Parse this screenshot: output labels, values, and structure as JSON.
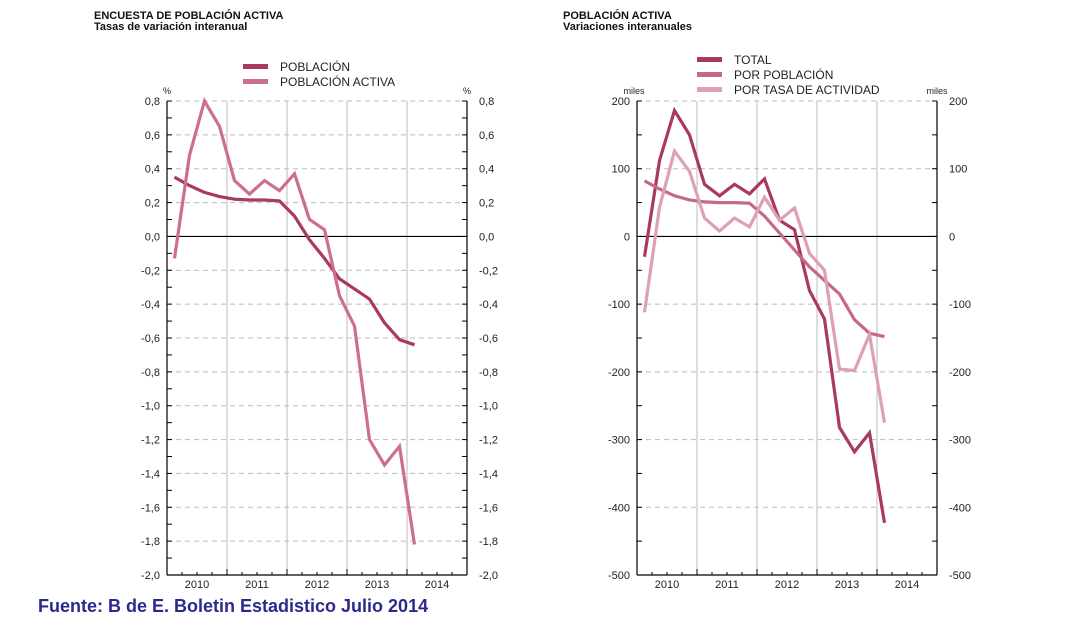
{
  "source_note": "Fuente: B de E. Boletin Estadistico Julio 2014",
  "chart_data": [
    {
      "type": "line",
      "title": "ENCUESTA DE POBLACIÓN ACTIVA",
      "subtitle": "Tasas de variación interanual",
      "ylabel_left": "%",
      "ylabel_right": "%",
      "ylim": [
        -2.0,
        0.8
      ],
      "yticks": [
        0.8,
        0.6,
        0.4,
        0.2,
        0.0,
        -0.2,
        -0.4,
        -0.6,
        -0.8,
        -1.0,
        -1.2,
        -1.4,
        -1.6,
        -1.8,
        -2.0
      ],
      "ytick_labels": [
        "0,8",
        "0,6",
        "0,4",
        "0,2",
        "0,0",
        "-0,2",
        "-0,4",
        "-0,6",
        "-0,8",
        "-1,0",
        "-1,2",
        "-1,4",
        "-1,6",
        "-1,8",
        "-2,0"
      ],
      "x_categories": [
        "2010",
        "2011",
        "2012",
        "2013",
        "2014"
      ],
      "x_periods": [
        "2010 Q1",
        "2010 Q2",
        "2010 Q3",
        "2010 Q4",
        "2011 Q1",
        "2011 Q2",
        "2011 Q3",
        "2011 Q4",
        "2012 Q1",
        "2012 Q2",
        "2012 Q3",
        "2012 Q4",
        "2013 Q1",
        "2013 Q2",
        "2013 Q3",
        "2013 Q4",
        "2014 Q1"
      ],
      "grid": true,
      "legend": "top-center",
      "series": [
        {
          "name": "POBLACIÓN",
          "color": "#a8395f",
          "values": [
            0.35,
            0.3,
            0.26,
            0.235,
            0.22,
            0.215,
            0.215,
            0.21,
            0.12,
            -0.02,
            -0.13,
            -0.25,
            -0.31,
            -0.37,
            -0.51,
            -0.61,
            -0.64
          ]
        },
        {
          "name": "POBLACIÓN ACTIVA",
          "color": "#cc6f8d",
          "values": [
            -0.13,
            0.48,
            0.8,
            0.65,
            0.33,
            0.25,
            0.33,
            0.27,
            0.37,
            0.1,
            0.04,
            -0.35,
            -0.53,
            -1.2,
            -1.35,
            -1.24,
            -1.82
          ]
        }
      ]
    },
    {
      "type": "line",
      "title": "POBLACIÓN ACTIVA",
      "subtitle": "Variaciones interanuales",
      "ylabel_left": "miles",
      "ylabel_right": "miles",
      "ylim": [
        -500,
        200
      ],
      "yticks": [
        200,
        100,
        0,
        -100,
        -200,
        -300,
        -400,
        -500
      ],
      "ytick_labels": [
        "200",
        "100",
        "0",
        "-100",
        "-200",
        "-300",
        "-400",
        "-500"
      ],
      "x_categories": [
        "2010",
        "2011",
        "2012",
        "2013",
        "2014"
      ],
      "x_periods": [
        "2010 Q1",
        "2010 Q2",
        "2010 Q3",
        "2010 Q4",
        "2011 Q1",
        "2011 Q2",
        "2011 Q3",
        "2011 Q4",
        "2012 Q1",
        "2012 Q2",
        "2012 Q3",
        "2012 Q4",
        "2013 Q1",
        "2013 Q2",
        "2013 Q3",
        "2013 Q4",
        "2014 Q1"
      ],
      "grid": true,
      "legend": "top-center",
      "series": [
        {
          "name": "TOTAL",
          "color": "#a8395f",
          "values": [
            -30,
            112,
            186,
            150,
            77,
            60,
            77,
            63,
            85,
            24,
            10,
            -80,
            -122,
            -282,
            -318,
            -290,
            -423
          ]
        },
        {
          "name": "POR POBLACIÓN",
          "color": "#c4698a",
          "values": [
            82,
            70,
            60,
            54,
            51,
            50,
            50,
            49,
            30,
            5,
            -20,
            -45,
            -65,
            -85,
            -123,
            -143,
            -148
          ]
        },
        {
          "name": "POR TASA DE ACTIVIDAD",
          "color": "#dea0b4",
          "values": [
            -112,
            43,
            126,
            96,
            27,
            8,
            27,
            14,
            58,
            24,
            42,
            -25,
            -50,
            -196,
            -198,
            -145,
            -275
          ]
        }
      ]
    }
  ]
}
